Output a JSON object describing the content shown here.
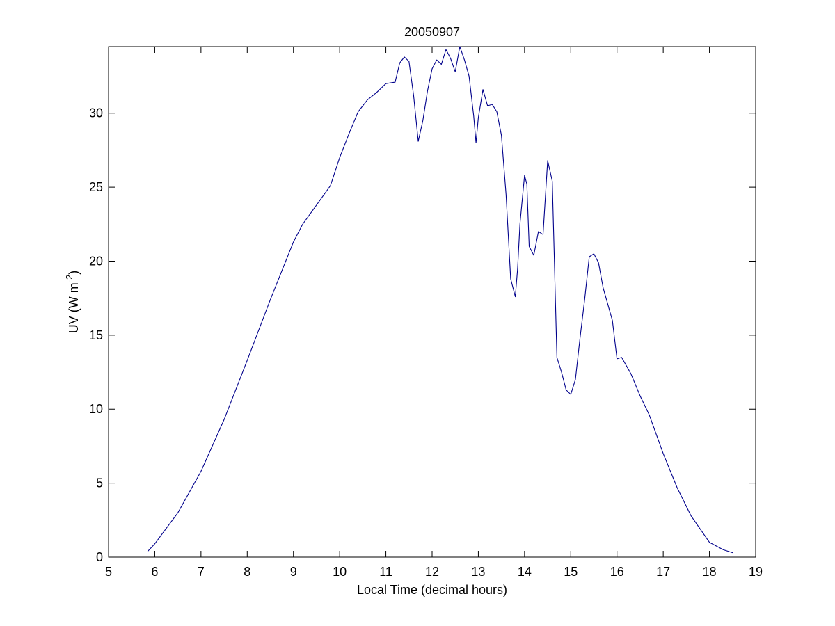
{
  "chart_data": {
    "type": "line",
    "title": "20050907",
    "xlabel": "Local Time (decimal hours)",
    "ylabel": {
      "base": "UV (W m",
      "superscript": "-2",
      "suffix": ")"
    },
    "xlim": [
      5,
      19
    ],
    "ylim": [
      0,
      34.5
    ],
    "xticks": [
      5,
      6,
      7,
      8,
      9,
      10,
      11,
      12,
      13,
      14,
      15,
      16,
      17,
      18,
      19
    ],
    "yticks": [
      0,
      5,
      10,
      15,
      20,
      25,
      30
    ],
    "grid": false,
    "series": [
      {
        "color": "#00008b",
        "x": [
          5.85,
          6,
          6.5,
          7,
          7.5,
          8,
          8.5,
          9,
          9.2,
          9.5,
          9.8,
          10,
          10.2,
          10.4,
          10.6,
          10.8,
          11,
          11.2,
          11.3,
          11.4,
          11.5,
          11.6,
          11.7,
          11.8,
          11.9,
          12,
          12.1,
          12.2,
          12.3,
          12.4,
          12.5,
          12.6,
          12.7,
          12.8,
          12.9,
          12.95,
          13,
          13.1,
          13.2,
          13.3,
          13.4,
          13.5,
          13.6,
          13.7,
          13.8,
          13.85,
          13.9,
          14,
          14.05,
          14.1,
          14.2,
          14.3,
          14.4,
          14.5,
          14.6,
          14.7,
          14.8,
          14.9,
          15,
          15.1,
          15.2,
          15.3,
          15.4,
          15.5,
          15.6,
          15.7,
          15.8,
          15.9,
          16,
          16.1,
          16.3,
          16.5,
          16.7,
          17,
          17.3,
          17.6,
          18,
          18.3,
          18.5
        ],
        "y": [
          0.4,
          0.9,
          3.0,
          5.8,
          9.3,
          13.3,
          17.4,
          21.3,
          22.5,
          23.8,
          25.1,
          27.0,
          28.6,
          30.1,
          30.9,
          31.4,
          32.0,
          32.1,
          33.4,
          33.8,
          33.5,
          31.2,
          28.1,
          29.5,
          31.5,
          33.0,
          33.6,
          33.3,
          34.3,
          33.7,
          32.8,
          34.5,
          33.6,
          32.5,
          29.8,
          28.0,
          29.7,
          31.6,
          30.5,
          30.6,
          30.1,
          28.5,
          24.5,
          18.8,
          17.6,
          19.5,
          22.5,
          25.8,
          25.2,
          21.0,
          20.4,
          22.0,
          21.8,
          26.8,
          25.4,
          13.5,
          12.5,
          11.3,
          11.0,
          12.0,
          14.8,
          17.4,
          20.3,
          20.5,
          19.9,
          18.2,
          17.1,
          16.0,
          13.4,
          13.5,
          12.4,
          10.9,
          9.6,
          7.0,
          4.7,
          2.8,
          1.0,
          0.5,
          0.3
        ]
      }
    ]
  }
}
